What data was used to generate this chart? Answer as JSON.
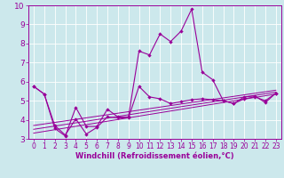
{
  "background_color": "#cce8ec",
  "grid_color": "#ffffff",
  "line_color": "#990099",
  "xlabel": "Windchill (Refroidissement éolien,°C)",
  "xlabel_fontsize": 6.0,
  "ytick_fontsize": 6.5,
  "xtick_fontsize": 5.5,
  "xlim": [
    -0.5,
    23.5
  ],
  "ylim": [
    3,
    10
  ],
  "yticks": [
    3,
    4,
    5,
    6,
    7,
    8,
    9,
    10
  ],
  "xticks": [
    0,
    1,
    2,
    3,
    4,
    5,
    6,
    7,
    8,
    9,
    10,
    11,
    12,
    13,
    14,
    15,
    16,
    17,
    18,
    19,
    20,
    21,
    22,
    23
  ],
  "series": [
    {
      "x": [
        0,
        1,
        2,
        3,
        4,
        5,
        6,
        7,
        8,
        9,
        10,
        11,
        12,
        13,
        14,
        15,
        16,
        17,
        18,
        19,
        20,
        21,
        22,
        23
      ],
      "y": [
        5.75,
        5.35,
        3.55,
        3.15,
        4.65,
        3.65,
        3.65,
        4.55,
        4.15,
        4.15,
        7.6,
        7.4,
        8.5,
        8.1,
        8.65,
        9.8,
        6.5,
        6.1,
        5.0,
        4.85,
        5.2,
        5.25,
        4.9,
        5.4
      ]
    },
    {
      "x": [
        0,
        1,
        2,
        3,
        4,
        5,
        6,
        7,
        8,
        9,
        10,
        11,
        12,
        13,
        14,
        15,
        16,
        17,
        18,
        19,
        20,
        21,
        22,
        23
      ],
      "y": [
        5.75,
        5.35,
        3.7,
        3.2,
        4.05,
        3.25,
        3.6,
        4.15,
        4.1,
        4.1,
        5.75,
        5.2,
        5.1,
        4.85,
        4.95,
        5.05,
        5.1,
        5.05,
        5.0,
        4.85,
        5.1,
        5.2,
        5.0,
        5.4
      ]
    },
    {
      "x": [
        0,
        23
      ],
      "y": [
        3.3,
        5.35
      ]
    },
    {
      "x": [
        0,
        23
      ],
      "y": [
        3.5,
        5.45
      ]
    },
    {
      "x": [
        0,
        23
      ],
      "y": [
        3.7,
        5.55
      ]
    }
  ]
}
